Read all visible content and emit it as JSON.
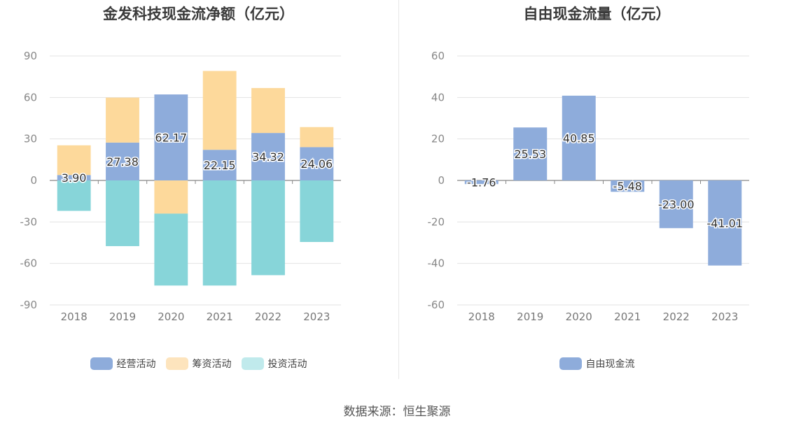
{
  "source_label": "数据来源：恒生聚源",
  "chart_data": [
    {
      "type": "bar",
      "stacked": true,
      "title": "金发科技现金流净额（亿元）",
      "categories": [
        "2018",
        "2019",
        "2020",
        "2021",
        "2022",
        "2023"
      ],
      "ylim": [
        -90,
        90
      ],
      "yticks": [
        90,
        60,
        30,
        0,
        -30,
        -60,
        -90
      ],
      "grid": true,
      "legend_position": "bottom-center",
      "series": [
        {
          "name": "经营活动",
          "color": "#8eacdb",
          "values": [
            3.9,
            27.38,
            62.17,
            22.15,
            34.32,
            24.06
          ],
          "labels": [
            "3.90",
            "27.38",
            "62.17",
            "22.15",
            "34.32",
            "24.06"
          ]
        },
        {
          "name": "筹资活动",
          "color": "#fdd99b",
          "values": [
            21.5,
            32.5,
            -24.0,
            57.0,
            32.5,
            14.5
          ]
        },
        {
          "name": "投资活动",
          "color": "#87d5d9",
          "values": [
            -22.0,
            -47.5,
            -52.0,
            -76.0,
            -68.5,
            -44.5
          ]
        }
      ],
      "legend_colors": {
        "经营活动": "#8eacdb",
        "筹资活动": "#fde4bd",
        "投资活动": "#c0eaec"
      }
    },
    {
      "type": "bar",
      "title": "自由现金流量（亿元）",
      "categories": [
        "2018",
        "2019",
        "2020",
        "2021",
        "2022",
        "2023"
      ],
      "ylim": [
        -60,
        60
      ],
      "yticks": [
        60,
        40,
        20,
        0,
        -20,
        -40,
        -60
      ],
      "grid": true,
      "legend_position": "bottom-center",
      "series": [
        {
          "name": "自由现金流",
          "color": "#8eacdb",
          "values": [
            -1.76,
            25.53,
            40.85,
            -5.48,
            -23.0,
            -41.01
          ],
          "labels": [
            "-1.76",
            "25.53",
            "40.85",
            "-5.48",
            "-23.00",
            "-41.01"
          ]
        }
      ]
    }
  ]
}
